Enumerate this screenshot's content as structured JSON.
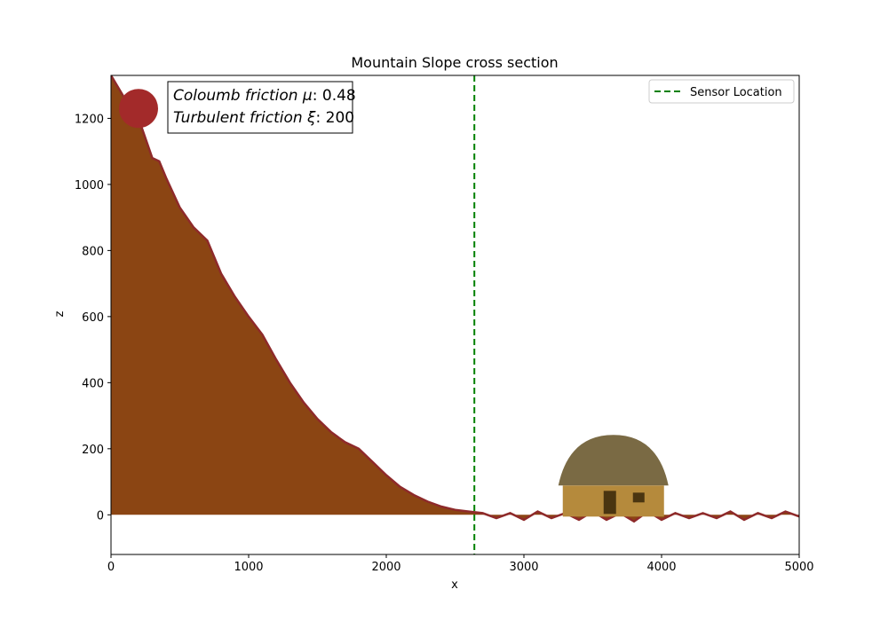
{
  "chart_data": {
    "type": "area",
    "title": "Mountain Slope cross section",
    "xlabel": "x",
    "ylabel": "z",
    "xlim": [
      0,
      5000
    ],
    "ylim": [
      -120,
      1330
    ],
    "xticks": [
      0,
      1000,
      2000,
      3000,
      4000,
      5000
    ],
    "yticks": [
      0,
      200,
      400,
      600,
      800,
      1000,
      1200
    ],
    "grid": false,
    "legend": {
      "placement": "top-right",
      "entries": [
        "Sensor Location"
      ]
    },
    "annotation": {
      "line1_label": "Coloumb friction μ",
      "line1_value": ": 0.48",
      "line2_label": "Turbulent friction ξ",
      "line2_value": ": 200"
    },
    "terrain_profile": {
      "name": "terrain",
      "x": [
        0,
        100,
        200,
        300,
        350,
        400,
        500,
        600,
        700,
        800,
        900,
        1000,
        1100,
        1200,
        1300,
        1400,
        1500,
        1600,
        1700,
        1800,
        1900,
        2000,
        2100,
        2200,
        2300,
        2400,
        2500,
        2600,
        2700,
        2800,
        2900,
        3000,
        3100,
        3200,
        3300,
        3400,
        3500,
        3600,
        3700,
        3800,
        3900,
        4000,
        4100,
        4200,
        4300,
        4400,
        4500,
        4600,
        4700,
        4800,
        4900,
        5000
      ],
      "z": [
        1330,
        1260,
        1200,
        1080,
        1070,
        1020,
        930,
        870,
        830,
        730,
        660,
        600,
        545,
        470,
        400,
        340,
        290,
        250,
        220,
        200,
        160,
        120,
        85,
        60,
        40,
        25,
        15,
        10,
        5,
        -10,
        5,
        -15,
        10,
        -10,
        5,
        -15,
        10,
        -15,
        5,
        -20,
        10,
        -15,
        5,
        -10,
        5,
        -10,
        10,
        -15,
        5,
        -10,
        10,
        -5
      ]
    },
    "sensor_location_x": 2640,
    "boulder": {
      "x": 200,
      "z": 1230
    },
    "house": {
      "x": 3650
    },
    "colors": {
      "terrain_fill": "#8b4513",
      "terrain_edge": "#8e2a2a",
      "sensor_line": "#008000",
      "boulder": "#a32a2a",
      "house_wall": "#b58a3c",
      "house_roof": "#7a6a44",
      "house_door": "#4a3510"
    }
  }
}
